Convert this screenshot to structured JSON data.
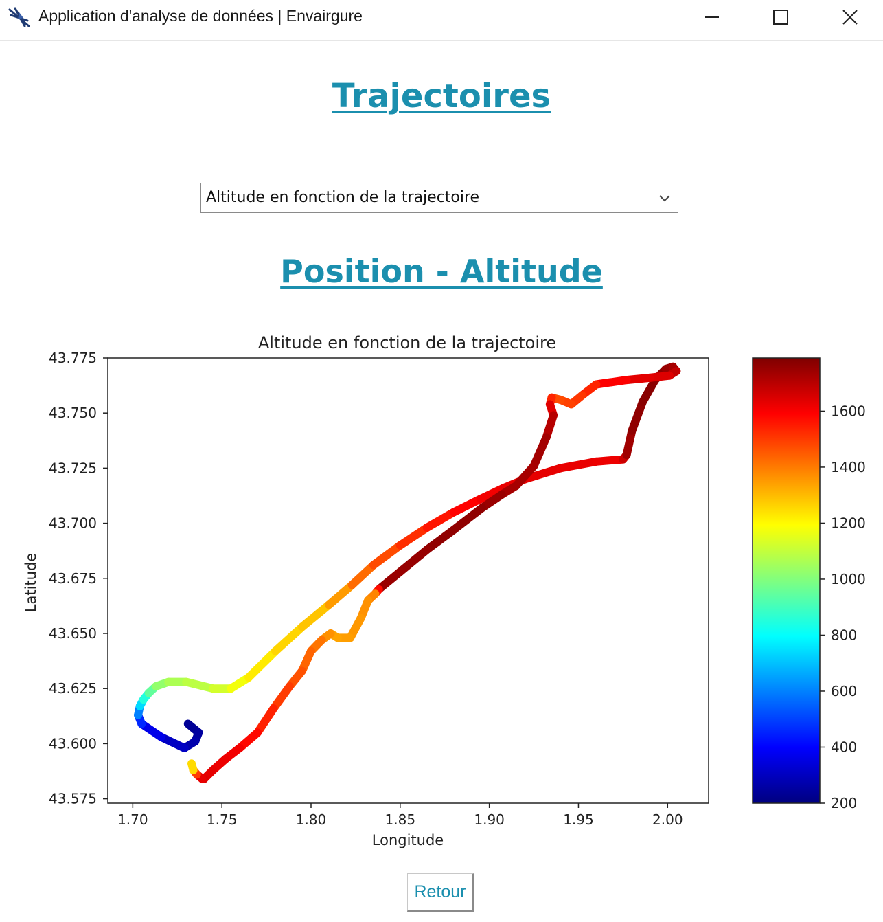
{
  "window": {
    "title": "Application d'analyse de données | Envairgure",
    "icon": "airplane-icon",
    "controls": [
      "minimize-icon",
      "maximize-icon",
      "close-icon"
    ]
  },
  "page": {
    "heading": "Trajectoires",
    "subheading": "Position - Altitude",
    "back_button": "Retour",
    "accent_color": "#1b8fae"
  },
  "select": {
    "value": "Altitude en fonction de la trajectoire"
  },
  "chart_data": {
    "type": "scatter",
    "title": "Altitude en fonction de la trajectoire",
    "xlabel": "Longitude",
    "ylabel": "Latitude",
    "xlim": [
      1.686,
      2.023
    ],
    "ylim": [
      43.573,
      43.775
    ],
    "xticks": [
      1.7,
      1.75,
      1.8,
      1.85,
      1.9,
      1.95,
      2.0
    ],
    "xtick_labels": [
      "1.70",
      "1.75",
      "1.80",
      "1.85",
      "1.90",
      "1.95",
      "2.00"
    ],
    "yticks": [
      43.575,
      43.6,
      43.625,
      43.65,
      43.675,
      43.7,
      43.725,
      43.75,
      43.775
    ],
    "ytick_labels": [
      "43.575",
      "43.600",
      "43.625",
      "43.650",
      "43.675",
      "43.700",
      "43.725",
      "43.750",
      "43.775"
    ],
    "colormap": "jet",
    "colorbar": {
      "range": [
        200,
        1790
      ],
      "ticks": [
        200,
        400,
        600,
        800,
        1000,
        1200,
        1400,
        1600
      ],
      "tick_labels": [
        "200",
        "400",
        "600",
        "800",
        "1000",
        "1200",
        "1400",
        "1600"
      ]
    },
    "grid": false,
    "series": [
      {
        "x": [
          1.731,
          1.737,
          1.735,
          1.729,
          1.716,
          1.705,
          1.703,
          1.704,
          1.706,
          1.709,
          1.713,
          1.72,
          1.73,
          1.745,
          1.755,
          1.765,
          1.78,
          1.795,
          1.81,
          1.823,
          1.835,
          1.85,
          1.865,
          1.88,
          1.895,
          1.908,
          1.92,
          1.94,
          1.96,
          1.975,
          1.977,
          1.98,
          1.986,
          1.993,
          1.999,
          2.003,
          2.005,
          2.001,
          1.99,
          1.977,
          1.96,
          1.952,
          1.946,
          1.94,
          1.935,
          1.934,
          1.936,
          1.932,
          1.925,
          1.915,
          1.907,
          1.896,
          1.88,
          1.865,
          1.85,
          1.838,
          1.836,
          1.832,
          1.828,
          1.822,
          1.815,
          1.811,
          1.806,
          1.8,
          1.795,
          1.788,
          1.779,
          1.77,
          1.76,
          1.752,
          1.745,
          1.74,
          1.739,
          1.736,
          1.734,
          1.733
        ],
        "y": [
          43.609,
          43.605,
          43.601,
          43.598,
          43.603,
          43.609,
          43.613,
          43.617,
          43.62,
          43.623,
          43.626,
          43.628,
          43.628,
          43.625,
          43.625,
          43.63,
          43.642,
          43.653,
          43.663,
          43.672,
          43.681,
          43.69,
          43.698,
          43.705,
          43.711,
          43.716,
          43.72,
          43.725,
          43.728,
          43.729,
          43.731,
          43.742,
          43.755,
          43.765,
          43.77,
          43.771,
          43.769,
          43.767,
          43.766,
          43.765,
          43.763,
          43.758,
          43.754,
          43.756,
          43.757,
          43.754,
          43.749,
          43.739,
          43.726,
          43.717,
          43.713,
          43.707,
          43.697,
          43.688,
          43.678,
          43.67,
          43.668,
          43.665,
          43.657,
          43.648,
          43.648,
          43.65,
          43.647,
          43.642,
          43.633,
          43.626,
          43.616,
          43.605,
          43.598,
          43.593,
          43.588,
          43.584,
          43.584,
          43.586,
          43.588,
          43.591
        ],
        "altitude": [
          230,
          240,
          260,
          280,
          330,
          400,
          520,
          680,
          800,
          900,
          1000,
          1050,
          1080,
          1100,
          1150,
          1200,
          1250,
          1270,
          1300,
          1400,
          1450,
          1500,
          1540,
          1580,
          1600,
          1620,
          1630,
          1630,
          1620,
          1620,
          1720,
          1760,
          1770,
          1780,
          1760,
          1740,
          1720,
          1650,
          1640,
          1630,
          1560,
          1510,
          1500,
          1480,
          1470,
          1600,
          1680,
          1730,
          1740,
          1720,
          1740,
          1760,
          1770,
          1760,
          1750,
          1750,
          1400,
          1370,
          1360,
          1350,
          1340,
          1330,
          1400,
          1420,
          1450,
          1480,
          1520,
          1560,
          1600,
          1620,
          1620,
          1640,
          1650,
          1600,
          1400,
          1100
        ]
      }
    ]
  }
}
